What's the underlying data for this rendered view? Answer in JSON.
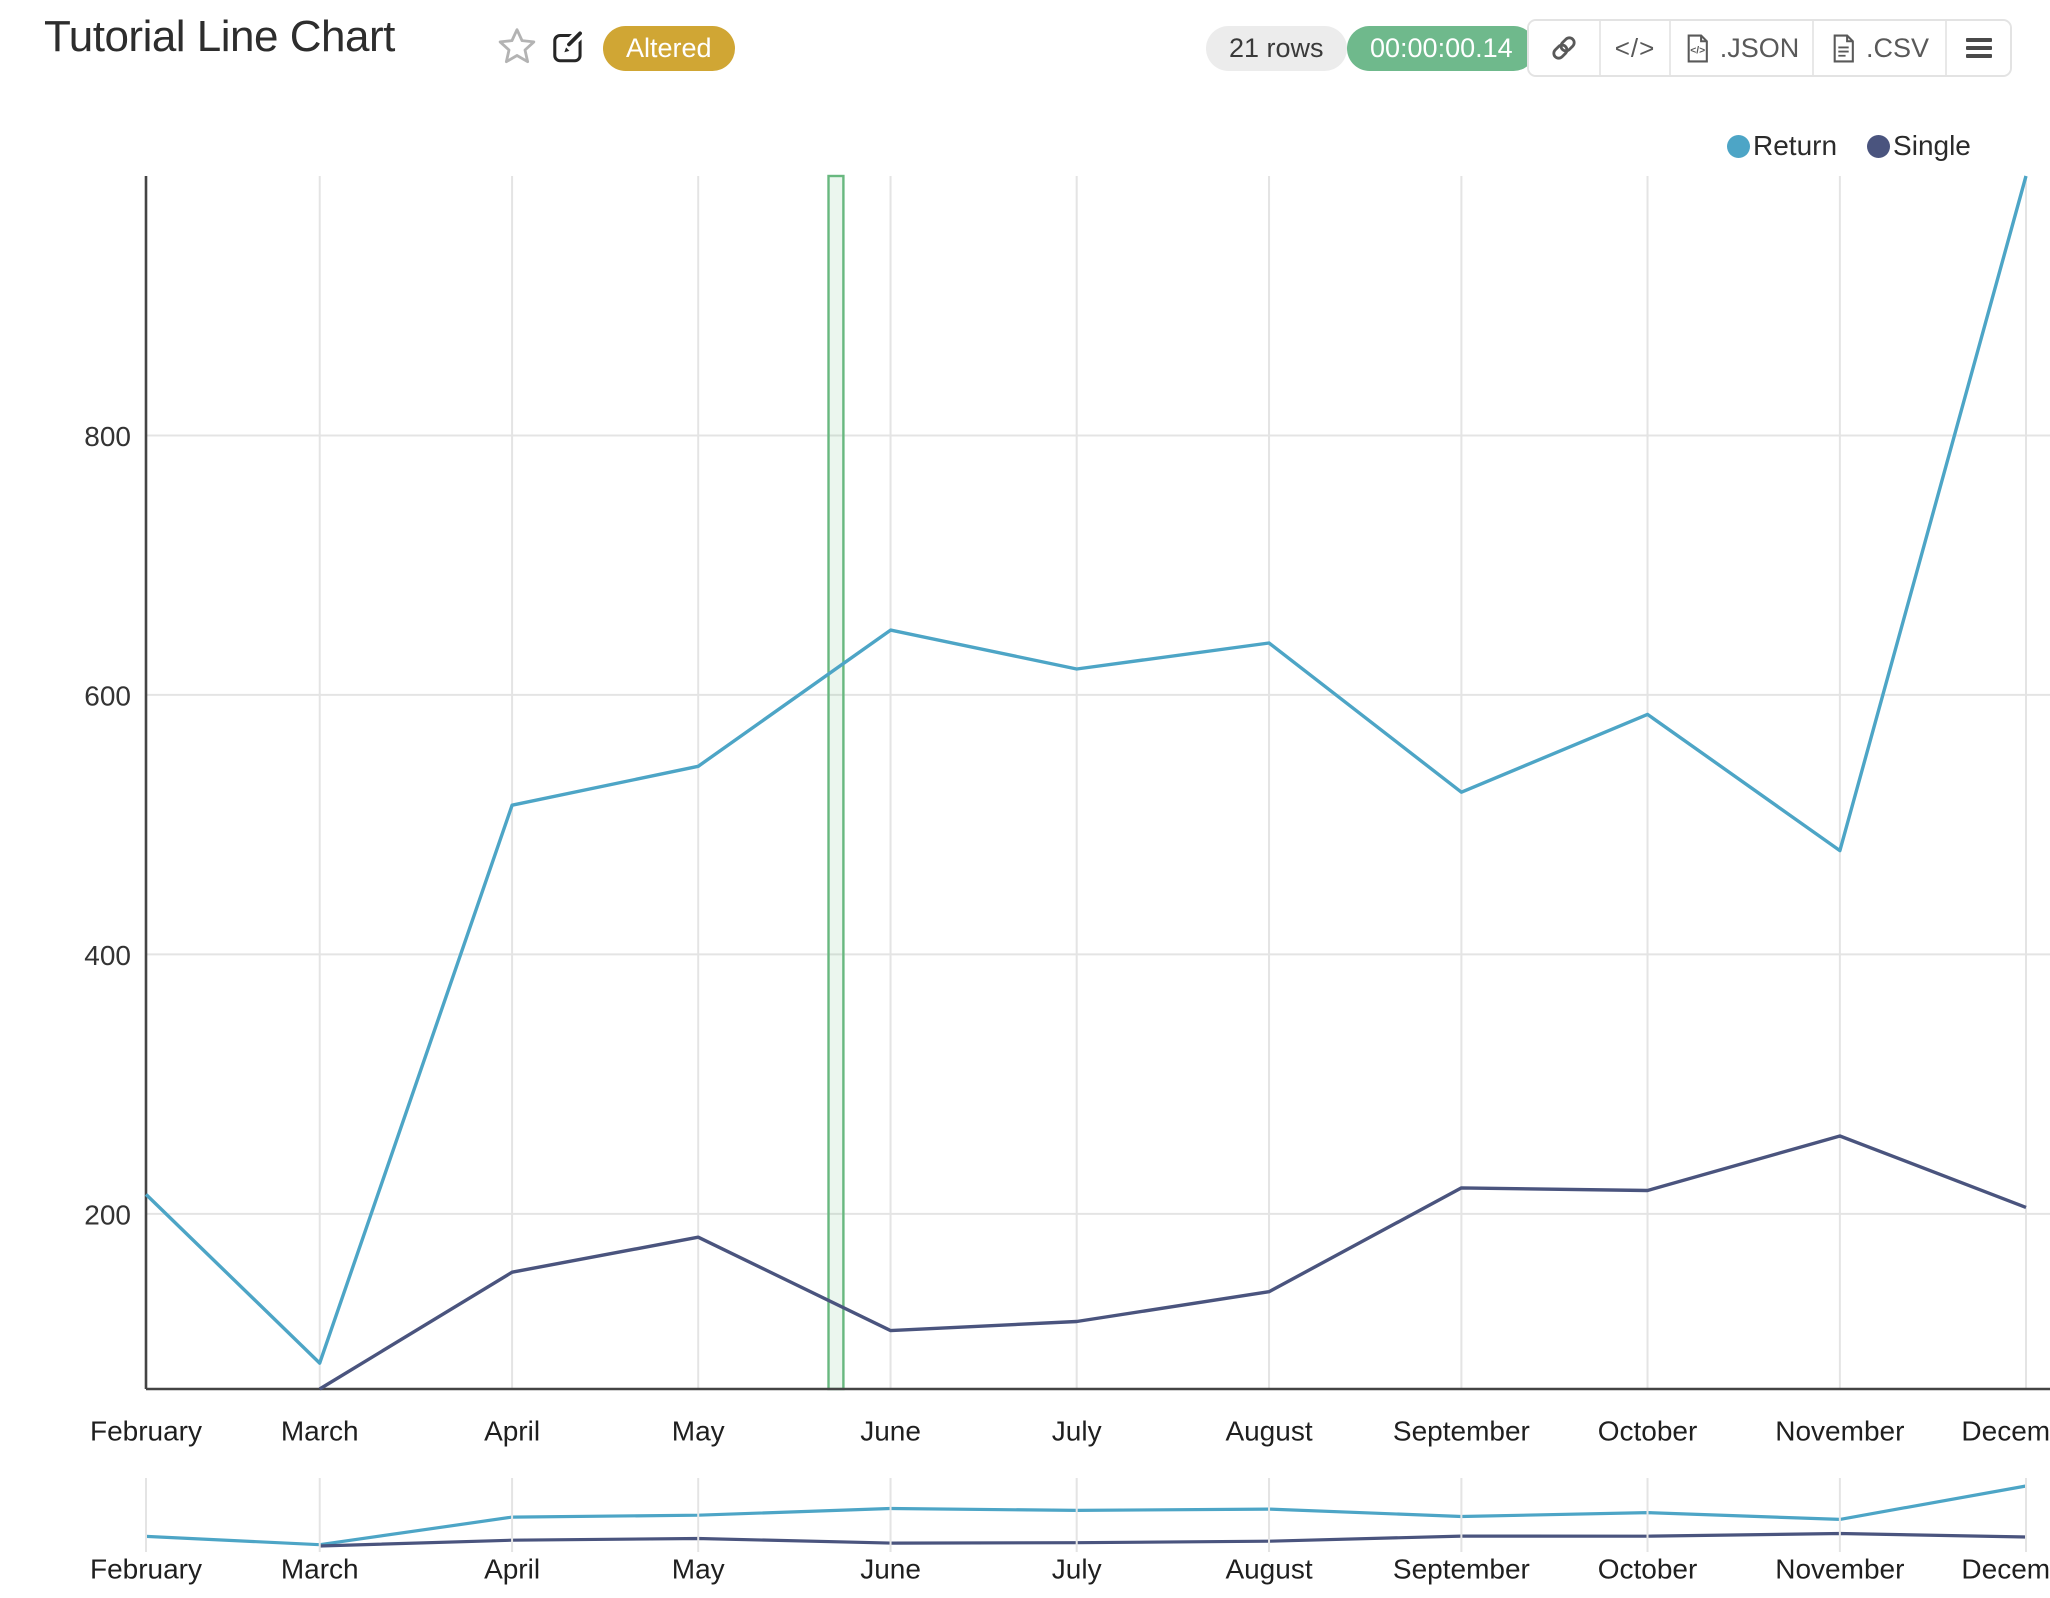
{
  "header": {
    "title": "Tutorial Line Chart",
    "status_badge": "Altered",
    "rows_badge": "21 rows",
    "duration_badge": "00:00:00.14",
    "export": {
      "json_label": ".JSON",
      "csv_label": ".CSV"
    }
  },
  "chart_data": {
    "type": "line",
    "x_categories": [
      "February",
      "March",
      "April",
      "May",
      "June",
      "July",
      "August",
      "September",
      "October",
      "November",
      "December"
    ],
    "x_day_offsets": [
      0,
      28,
      59,
      89,
      120,
      150,
      181,
      212,
      242,
      273,
      303
    ],
    "series": [
      {
        "name": "Return",
        "color": "#4da5c6",
        "values": [
          215,
          85,
          515,
          545,
          650,
          620,
          640,
          525,
          585,
          480,
          1000
        ]
      },
      {
        "name": "Single",
        "color": "#4a547e",
        "values": [
          null,
          65,
          155,
          182,
          110,
          117,
          140,
          220,
          218,
          260,
          205
        ]
      }
    ],
    "legend": [
      {
        "label": "Return",
        "color": "#4da5c6"
      },
      {
        "label": "Single",
        "color": "#4a547e"
      }
    ],
    "yticks": [
      200,
      400,
      600,
      800
    ],
    "ylim": [
      65,
      1000
    ],
    "grid": true,
    "legend_position": "top-right",
    "annotation_band": {
      "start_day": 110,
      "end_day": 112.4,
      "stroke": "#68b87f",
      "fill": "#68b87f",
      "fill_opacity": 0.13
    },
    "rangeslider": true
  },
  "colors": {
    "axis": "#444444",
    "gridline": "#e4e4e4",
    "tick_label": "#333333",
    "month_label": "#1f1f1f",
    "accent_gold": "#d0a634",
    "accent_green": "#6fb98c"
  }
}
